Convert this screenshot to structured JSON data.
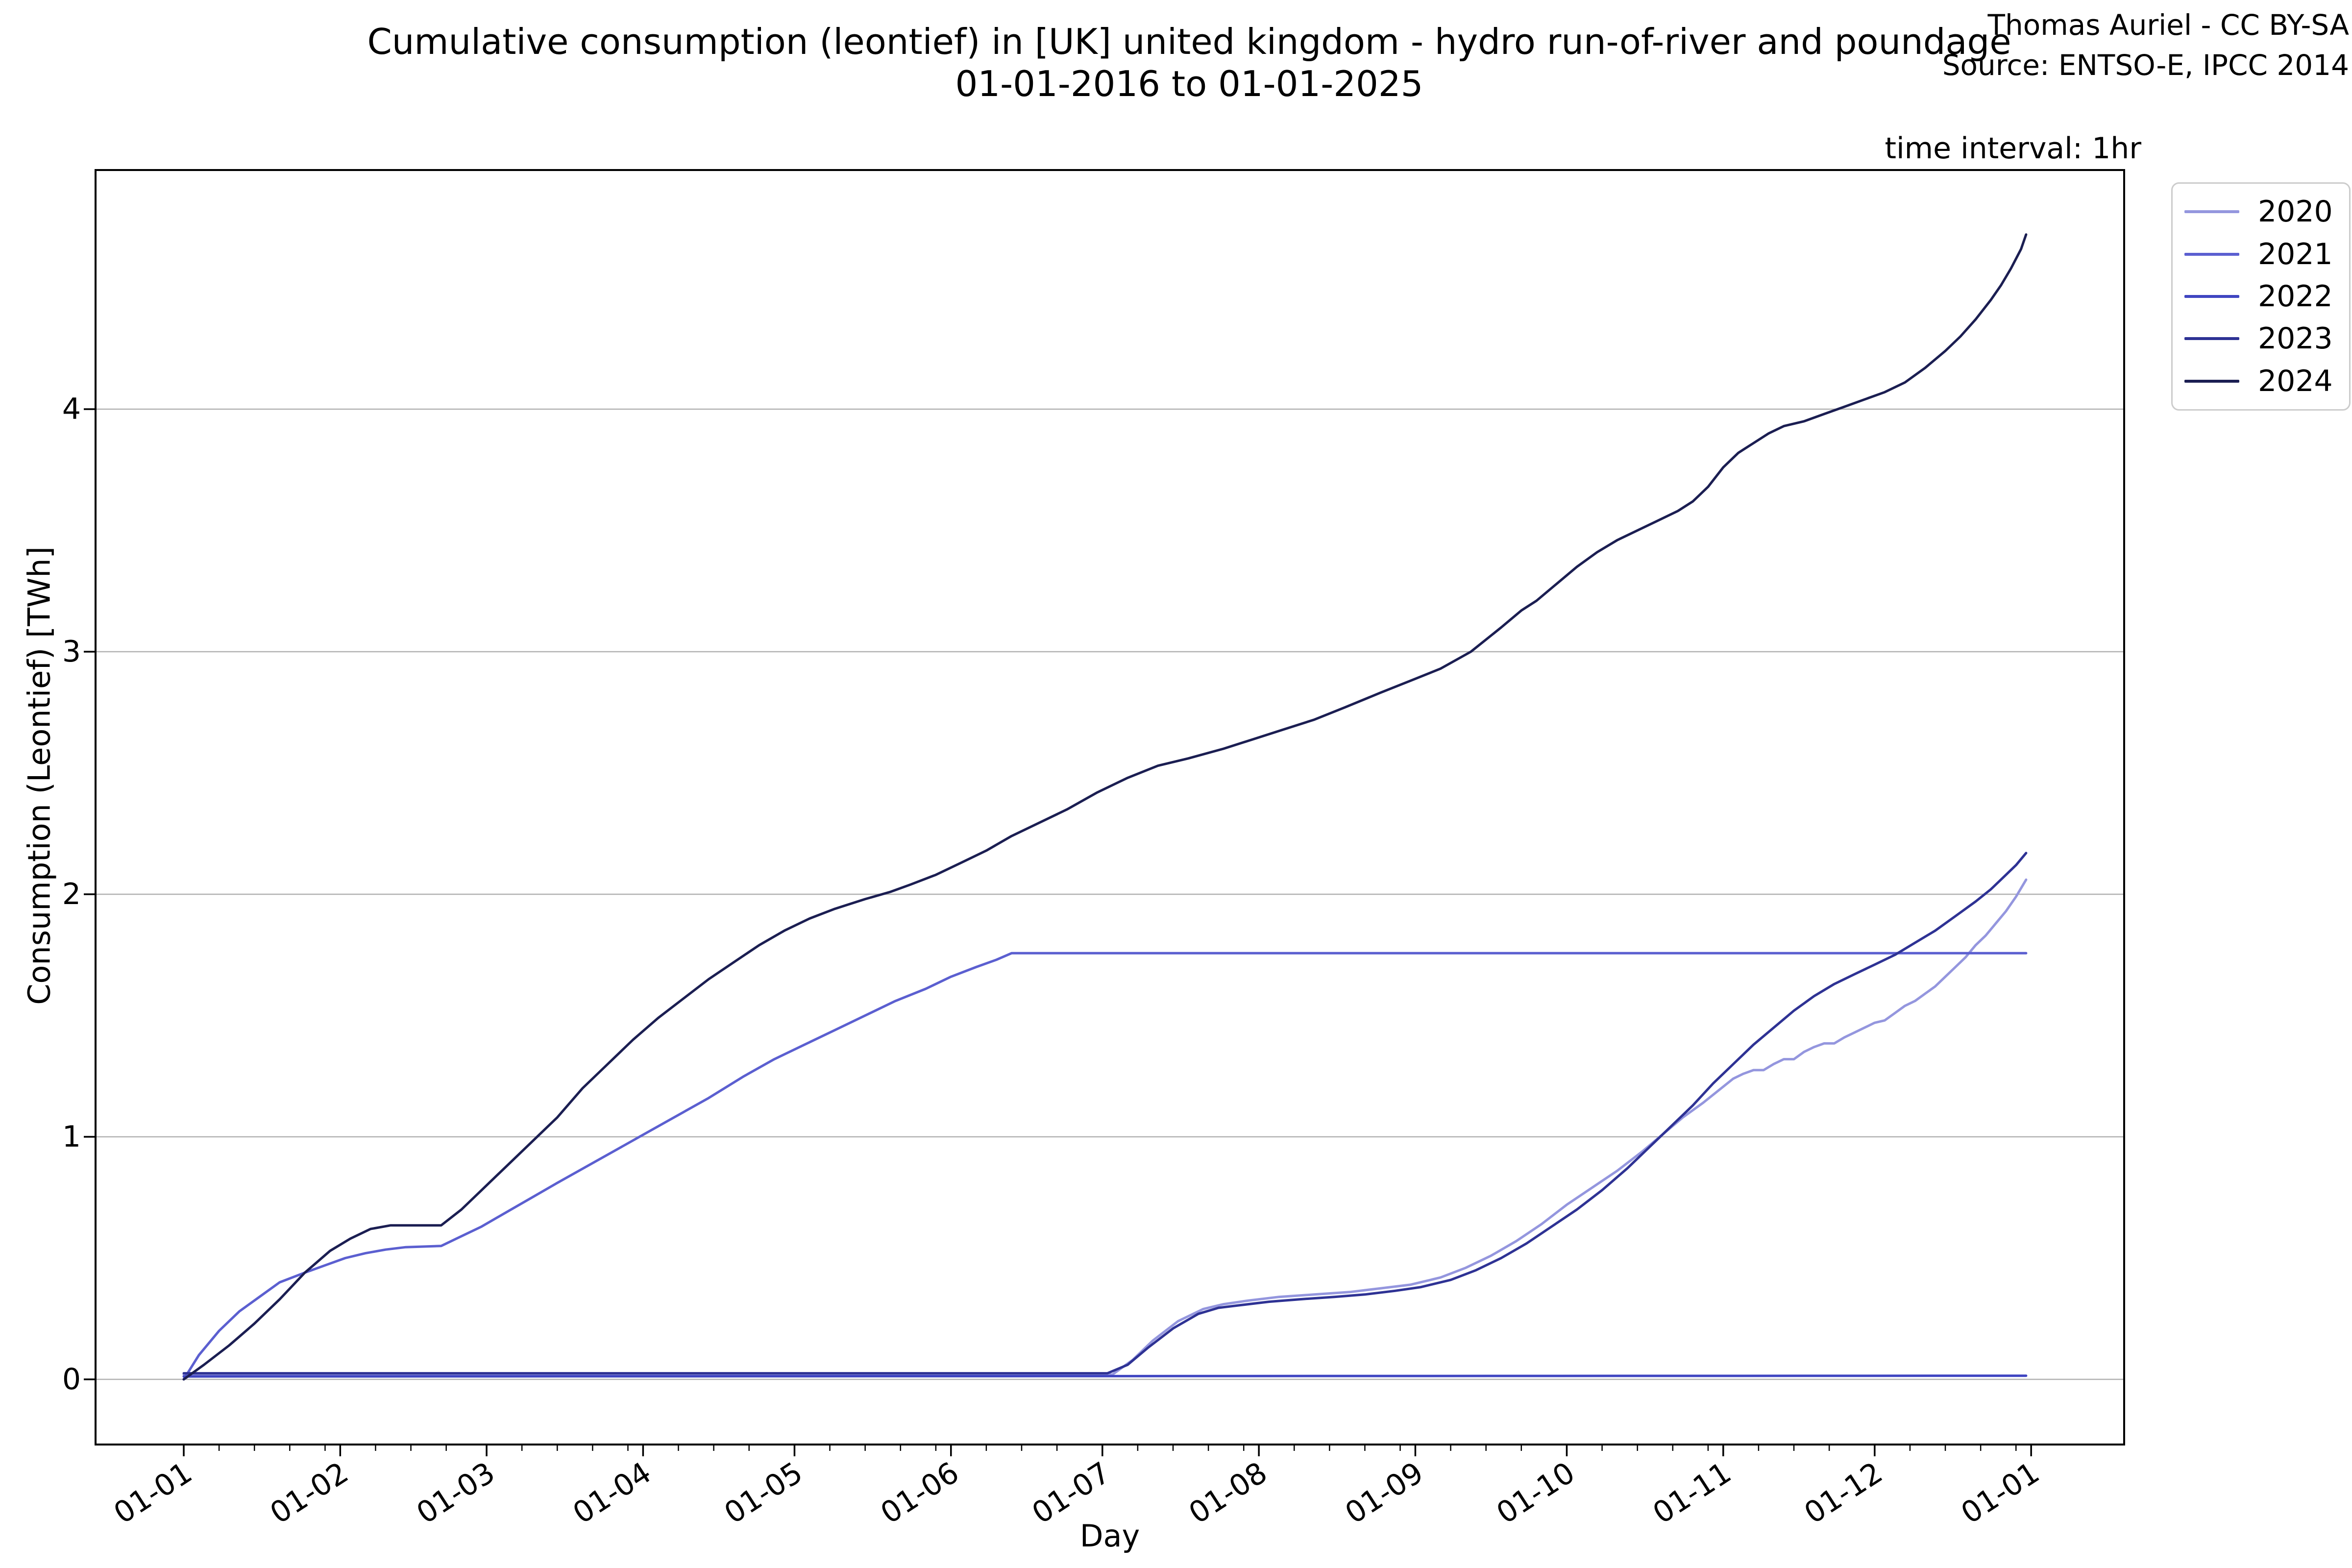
{
  "header": {
    "title_line1": "Cumulative consumption (leontief) in [UK] united kingdom - hydro run-of-river and poundage",
    "title_line2": "01-01-2016 to 01-01-2025",
    "attribution_line1": "Thomas Auriel - CC BY-SA",
    "attribution_line2": "Source: ENTSO-E, IPCC 2014",
    "time_interval_note": "time interval: 1hr"
  },
  "axes": {
    "xlabel": "Day",
    "ylabel": "Consumption (Leontief) [TWh]"
  },
  "colors": {
    "background": "#ffffff",
    "axis": "#000000",
    "grid": "#b2b2b2",
    "legend_border": "#cccccc",
    "text": "#000000"
  },
  "legend": {
    "position": "outside upper right",
    "entries": [
      {
        "label": "2020",
        "color": "#9496de"
      },
      {
        "label": "2021",
        "color": "#5b5fd0"
      },
      {
        "label": "2022",
        "color": "#3f45c1"
      },
      {
        "label": "2023",
        "color": "#2e3294"
      },
      {
        "label": "2024",
        "color": "#1b1e52"
      }
    ]
  },
  "chart_data": {
    "type": "line",
    "title": "Cumulative consumption (leontief) in [UK] united kingdom - hydro run-of-river and poundage 01-01-2016 to 01-01-2025",
    "xlabel": "Day",
    "ylabel": "Consumption (Leontief) [TWh]",
    "x_tick_labels": [
      "01-01",
      "01-02",
      "01-03",
      "01-04",
      "01-05",
      "01-06",
      "01-07",
      "01-08",
      "01-09",
      "01-10",
      "01-11",
      "01-12",
      "01-01"
    ],
    "x_tick_days": [
      1,
      32,
      61,
      92,
      122,
      153,
      183,
      214,
      245,
      275,
      306,
      336,
      367
    ],
    "y_ticks": [
      0,
      1,
      2,
      3,
      4
    ],
    "xlim_days": [
      -16.5,
      385.5
    ],
    "ylim": [
      -0.27,
      4.99
    ],
    "grid": "horizontal gridlines only",
    "legend_position": "outside upper right",
    "x_units": "day of year (month-day)",
    "y_units": "TWh",
    "series": [
      {
        "name": "2020",
        "color": "#9496de",
        "points": [
          [
            1,
            0.02
          ],
          [
            60,
            0.02
          ],
          [
            120,
            0.02
          ],
          [
            185,
            0.02
          ],
          [
            189,
            0.08
          ],
          [
            193,
            0.16
          ],
          [
            198,
            0.24
          ],
          [
            203,
            0.29
          ],
          [
            207,
            0.31
          ],
          [
            212,
            0.325
          ],
          [
            218,
            0.34
          ],
          [
            225,
            0.35
          ],
          [
            232,
            0.36
          ],
          [
            238,
            0.375
          ],
          [
            244,
            0.39
          ],
          [
            250,
            0.42
          ],
          [
            255,
            0.46
          ],
          [
            260,
            0.51
          ],
          [
            265,
            0.57
          ],
          [
            270,
            0.64
          ],
          [
            275,
            0.72
          ],
          [
            280,
            0.79
          ],
          [
            285,
            0.86
          ],
          [
            290,
            0.94
          ],
          [
            294,
            1.01
          ],
          [
            298,
            1.08
          ],
          [
            302,
            1.14
          ],
          [
            305,
            1.19
          ],
          [
            308,
            1.24
          ],
          [
            310,
            1.26
          ],
          [
            312,
            1.275
          ],
          [
            314,
            1.275
          ],
          [
            316,
            1.3
          ],
          [
            318,
            1.32
          ],
          [
            320,
            1.32
          ],
          [
            322,
            1.35
          ],
          [
            324,
            1.37
          ],
          [
            326,
            1.385
          ],
          [
            328,
            1.385
          ],
          [
            330,
            1.41
          ],
          [
            332,
            1.43
          ],
          [
            334,
            1.45
          ],
          [
            336,
            1.47
          ],
          [
            338,
            1.48
          ],
          [
            340,
            1.51
          ],
          [
            342,
            1.54
          ],
          [
            344,
            1.56
          ],
          [
            346,
            1.59
          ],
          [
            348,
            1.62
          ],
          [
            350,
            1.66
          ],
          [
            352,
            1.7
          ],
          [
            354,
            1.74
          ],
          [
            356,
            1.79
          ],
          [
            358,
            1.83
          ],
          [
            360,
            1.88
          ],
          [
            362,
            1.93
          ],
          [
            364,
            1.99
          ],
          [
            366,
            2.06
          ]
        ]
      },
      {
        "name": "2021",
        "color": "#5b5fd0",
        "points": [
          [
            1,
            0
          ],
          [
            4,
            0.1
          ],
          [
            8,
            0.2
          ],
          [
            12,
            0.28
          ],
          [
            16,
            0.34
          ],
          [
            20,
            0.4
          ],
          [
            25,
            0.44
          ],
          [
            29,
            0.47
          ],
          [
            33,
            0.5
          ],
          [
            37,
            0.52
          ],
          [
            41,
            0.535
          ],
          [
            45,
            0.545
          ],
          [
            52,
            0.55
          ],
          [
            55,
            0.58
          ],
          [
            60,
            0.63
          ],
          [
            65,
            0.69
          ],
          [
            70,
            0.75
          ],
          [
            75,
            0.81
          ],
          [
            81,
            0.88
          ],
          [
            87,
            0.95
          ],
          [
            93,
            1.02
          ],
          [
            99,
            1.09
          ],
          [
            105,
            1.16
          ],
          [
            112,
            1.25
          ],
          [
            118,
            1.32
          ],
          [
            124,
            1.38
          ],
          [
            130,
            1.44
          ],
          [
            136,
            1.5
          ],
          [
            142,
            1.56
          ],
          [
            148,
            1.61
          ],
          [
            153,
            1.66
          ],
          [
            158,
            1.7
          ],
          [
            162,
            1.73
          ],
          [
            165,
            1.757
          ],
          [
            366,
            1.757
          ]
        ]
      },
      {
        "name": "2022",
        "color": "#3f45c1",
        "points": [
          [
            1,
            0.012
          ],
          [
            366,
            0.015
          ]
        ]
      },
      {
        "name": "2023",
        "color": "#2e3294",
        "points": [
          [
            1,
            0.025
          ],
          [
            60,
            0.025
          ],
          [
            120,
            0.025
          ],
          [
            184,
            0.025
          ],
          [
            188,
            0.06
          ],
          [
            192,
            0.13
          ],
          [
            197,
            0.21
          ],
          [
            202,
            0.27
          ],
          [
            206,
            0.295
          ],
          [
            210,
            0.305
          ],
          [
            216,
            0.32
          ],
          [
            222,
            0.33
          ],
          [
            229,
            0.34
          ],
          [
            235,
            0.35
          ],
          [
            241,
            0.365
          ],
          [
            246,
            0.38
          ],
          [
            252,
            0.41
          ],
          [
            257,
            0.45
          ],
          [
            262,
            0.5
          ],
          [
            267,
            0.56
          ],
          [
            272,
            0.63
          ],
          [
            277,
            0.7
          ],
          [
            282,
            0.78
          ],
          [
            287,
            0.87
          ],
          [
            292,
            0.97
          ],
          [
            296,
            1.05
          ],
          [
            300,
            1.13
          ],
          [
            304,
            1.22
          ],
          [
            308,
            1.3
          ],
          [
            312,
            1.38
          ],
          [
            316,
            1.45
          ],
          [
            320,
            1.52
          ],
          [
            324,
            1.58
          ],
          [
            328,
            1.63
          ],
          [
            332,
            1.67
          ],
          [
            336,
            1.71
          ],
          [
            340,
            1.75
          ],
          [
            344,
            1.8
          ],
          [
            348,
            1.85
          ],
          [
            352,
            1.91
          ],
          [
            356,
            1.97
          ],
          [
            359,
            2.02
          ],
          [
            362,
            2.08
          ],
          [
            364,
            2.12
          ],
          [
            366,
            2.17
          ]
        ]
      },
      {
        "name": "2024",
        "color": "#1b1e52",
        "points": [
          [
            1,
            0
          ],
          [
            5,
            0.06
          ],
          [
            10,
            0.14
          ],
          [
            15,
            0.23
          ],
          [
            20,
            0.33
          ],
          [
            25,
            0.44
          ],
          [
            30,
            0.53
          ],
          [
            34,
            0.58
          ],
          [
            38,
            0.62
          ],
          [
            42,
            0.635
          ],
          [
            52,
            0.635
          ],
          [
            56,
            0.7
          ],
          [
            60,
            0.78
          ],
          [
            65,
            0.88
          ],
          [
            70,
            0.98
          ],
          [
            75,
            1.08
          ],
          [
            80,
            1.2
          ],
          [
            85,
            1.3
          ],
          [
            90,
            1.4
          ],
          [
            95,
            1.49
          ],
          [
            100,
            1.57
          ],
          [
            105,
            1.65
          ],
          [
            110,
            1.72
          ],
          [
            115,
            1.79
          ],
          [
            120,
            1.85
          ],
          [
            125,
            1.9
          ],
          [
            130,
            1.94
          ],
          [
            136,
            1.98
          ],
          [
            141,
            2.01
          ],
          [
            145,
            2.04
          ],
          [
            150,
            2.08
          ],
          [
            155,
            2.13
          ],
          [
            160,
            2.18
          ],
          [
            165,
            2.24
          ],
          [
            170,
            2.29
          ],
          [
            176,
            2.35
          ],
          [
            182,
            2.42
          ],
          [
            188,
            2.48
          ],
          [
            194,
            2.53
          ],
          [
            200,
            2.56
          ],
          [
            207,
            2.6
          ],
          [
            213,
            2.64
          ],
          [
            219,
            2.68
          ],
          [
            225,
            2.72
          ],
          [
            231,
            2.77
          ],
          [
            238,
            2.83
          ],
          [
            244,
            2.88
          ],
          [
            250,
            2.93
          ],
          [
            256,
            3.0
          ],
          [
            262,
            3.1
          ],
          [
            266,
            3.17
          ],
          [
            269,
            3.21
          ],
          [
            273,
            3.28
          ],
          [
            277,
            3.35
          ],
          [
            281,
            3.41
          ],
          [
            285,
            3.46
          ],
          [
            289,
            3.5
          ],
          [
            293,
            3.54
          ],
          [
            297,
            3.58
          ],
          [
            300,
            3.62
          ],
          [
            303,
            3.68
          ],
          [
            306,
            3.76
          ],
          [
            309,
            3.82
          ],
          [
            312,
            3.86
          ],
          [
            315,
            3.9
          ],
          [
            318,
            3.93
          ],
          [
            322,
            3.95
          ],
          [
            326,
            3.98
          ],
          [
            330,
            4.01
          ],
          [
            334,
            4.04
          ],
          [
            338,
            4.07
          ],
          [
            342,
            4.11
          ],
          [
            346,
            4.17
          ],
          [
            350,
            4.24
          ],
          [
            353,
            4.3
          ],
          [
            356,
            4.37
          ],
          [
            359,
            4.45
          ],
          [
            361,
            4.51
          ],
          [
            363,
            4.58
          ],
          [
            365,
            4.66
          ],
          [
            366,
            4.72
          ]
        ]
      }
    ]
  }
}
